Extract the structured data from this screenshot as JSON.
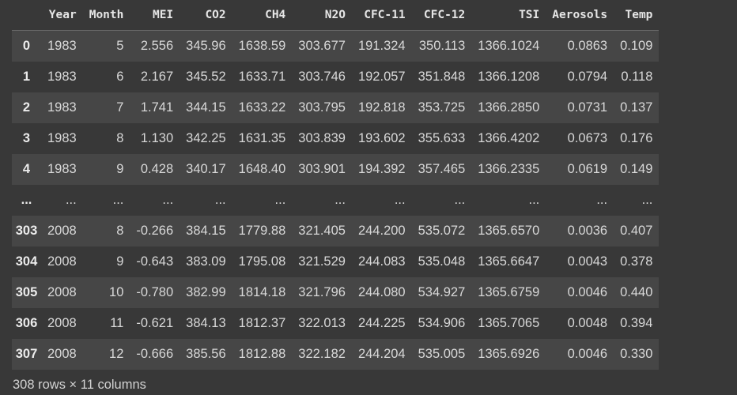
{
  "columns": [
    "Year",
    "Month",
    "MEI",
    "CO2",
    "CH4",
    "N2O",
    "CFC-11",
    "CFC-12",
    "TSI",
    "Aerosols",
    "Temp"
  ],
  "rows": [
    {
      "index": "0",
      "cells": [
        "1983",
        "5",
        "2.556",
        "345.96",
        "1638.59",
        "303.677",
        "191.324",
        "350.113",
        "1366.1024",
        "0.0863",
        "0.109"
      ]
    },
    {
      "index": "1",
      "cells": [
        "1983",
        "6",
        "2.167",
        "345.52",
        "1633.71",
        "303.746",
        "192.057",
        "351.848",
        "1366.1208",
        "0.0794",
        "0.118"
      ]
    },
    {
      "index": "2",
      "cells": [
        "1983",
        "7",
        "1.741",
        "344.15",
        "1633.22",
        "303.795",
        "192.818",
        "353.725",
        "1366.2850",
        "0.0731",
        "0.137"
      ]
    },
    {
      "index": "3",
      "cells": [
        "1983",
        "8",
        "1.130",
        "342.25",
        "1631.35",
        "303.839",
        "193.602",
        "355.633",
        "1366.4202",
        "0.0673",
        "0.176"
      ]
    },
    {
      "index": "4",
      "cells": [
        "1983",
        "9",
        "0.428",
        "340.17",
        "1648.40",
        "303.901",
        "194.392",
        "357.465",
        "1366.2335",
        "0.0619",
        "0.149"
      ]
    },
    {
      "index": "...",
      "cells": [
        "...",
        "...",
        "...",
        "...",
        "...",
        "...",
        "...",
        "...",
        "...",
        "...",
        "..."
      ]
    },
    {
      "index": "303",
      "cells": [
        "2008",
        "8",
        "-0.266",
        "384.15",
        "1779.88",
        "321.405",
        "244.200",
        "535.072",
        "1365.6570",
        "0.0036",
        "0.407"
      ]
    },
    {
      "index": "304",
      "cells": [
        "2008",
        "9",
        "-0.643",
        "383.09",
        "1795.08",
        "321.529",
        "244.083",
        "535.048",
        "1365.6647",
        "0.0043",
        "0.378"
      ]
    },
    {
      "index": "305",
      "cells": [
        "2008",
        "10",
        "-0.780",
        "382.99",
        "1814.18",
        "321.796",
        "244.080",
        "534.927",
        "1365.6759",
        "0.0046",
        "0.440"
      ]
    },
    {
      "index": "306",
      "cells": [
        "2008",
        "11",
        "-0.621",
        "384.13",
        "1812.37",
        "322.013",
        "244.225",
        "534.906",
        "1365.7065",
        "0.0048",
        "0.394"
      ]
    },
    {
      "index": "307",
      "cells": [
        "2008",
        "12",
        "-0.666",
        "385.56",
        "1812.88",
        "322.182",
        "244.204",
        "535.005",
        "1365.6926",
        "0.0046",
        "0.330"
      ]
    }
  ],
  "footer": "308 rows × 11 columns"
}
